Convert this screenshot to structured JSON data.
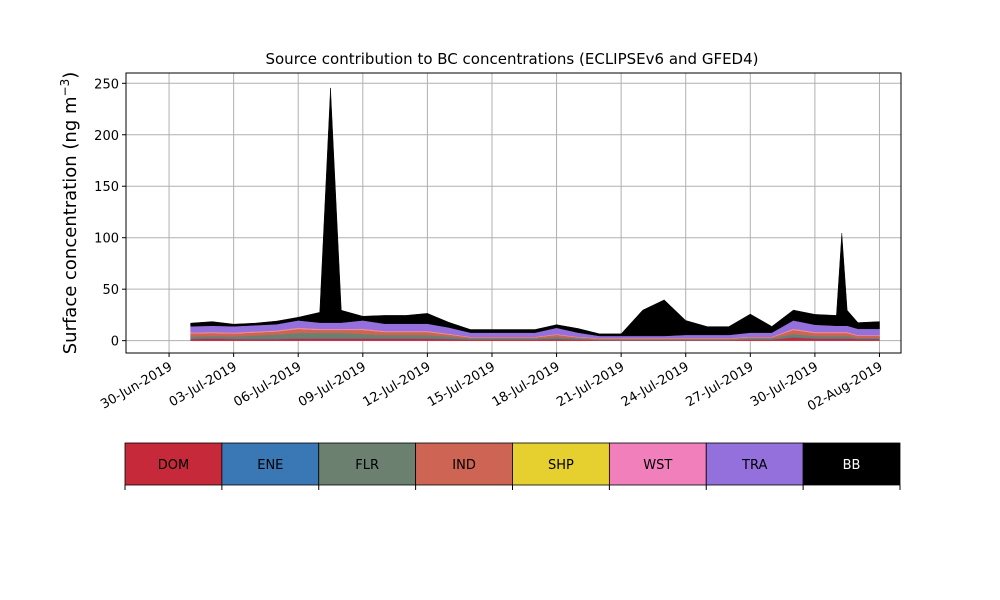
{
  "chart_data": {
    "type": "area",
    "title": "Source contribution to BC concentrations (ECLIPSEv6 and GFED4)",
    "ylabel_main": "Surface concentration (ng m",
    "ylabel_sup": "−3",
    "ylabel_close": ")",
    "xlabel": "",
    "ylim": [
      -12,
      260
    ],
    "xlim": [
      "2019-06-28",
      "2019-08-03"
    ],
    "yticks": [
      0,
      50,
      100,
      150,
      200,
      250
    ],
    "xticks": [
      {
        "date": "2019-06-30",
        "label": "30-Jun-2019"
      },
      {
        "date": "2019-07-03",
        "label": "03-Jul-2019"
      },
      {
        "date": "2019-07-06",
        "label": "06-Jul-2019"
      },
      {
        "date": "2019-07-09",
        "label": "09-Jul-2019"
      },
      {
        "date": "2019-07-12",
        "label": "12-Jul-2019"
      },
      {
        "date": "2019-07-15",
        "label": "15-Jul-2019"
      },
      {
        "date": "2019-07-18",
        "label": "18-Jul-2019"
      },
      {
        "date": "2019-07-21",
        "label": "21-Jul-2019"
      },
      {
        "date": "2019-07-24",
        "label": "24-Jul-2019"
      },
      {
        "date": "2019-07-27",
        "label": "27-Jul-2019"
      },
      {
        "date": "2019-07-30",
        "label": "30-Jul-2019"
      },
      {
        "date": "2019-08-02",
        "label": "02-Aug-2019"
      }
    ],
    "grid": true,
    "stacked": true,
    "dates": [
      "2019-07-01",
      "2019-07-02",
      "2019-07-03",
      "2019-07-04",
      "2019-07-05",
      "2019-07-06",
      "2019-07-07",
      "2019-07-07 12:00",
      "2019-07-08",
      "2019-07-09",
      "2019-07-10",
      "2019-07-11",
      "2019-07-12",
      "2019-07-13",
      "2019-07-14",
      "2019-07-15",
      "2019-07-16",
      "2019-07-17",
      "2019-07-18",
      "2019-07-19",
      "2019-07-20",
      "2019-07-21",
      "2019-07-22",
      "2019-07-23",
      "2019-07-24",
      "2019-07-25",
      "2019-07-26",
      "2019-07-27",
      "2019-07-28",
      "2019-07-29",
      "2019-07-30",
      "2019-07-31",
      "2019-07-31 06:00",
      "2019-07-31 12:00",
      "2019-08-01",
      "2019-08-02"
    ],
    "series": [
      {
        "name": "DOM",
        "color": "#c62a3a",
        "values": [
          1.5,
          2,
          1.5,
          1.5,
          1.5,
          2,
          2,
          2,
          2,
          2,
          2,
          2,
          2,
          1.5,
          1,
          1,
          1,
          1,
          1.5,
          1,
          0.5,
          0.5,
          0.5,
          0.5,
          0.5,
          0.5,
          0.5,
          1,
          1,
          3,
          2,
          2,
          2,
          2,
          1.5,
          1.5
        ]
      },
      {
        "name": "ENE",
        "color": "#3a78b5",
        "values": [
          0.5,
          0.5,
          0.5,
          0.5,
          0.5,
          0.5,
          0.5,
          0.5,
          0.5,
          0.5,
          0.5,
          0.5,
          0.5,
          0.5,
          0.3,
          0.3,
          0.3,
          0.3,
          0.3,
          0.3,
          0.2,
          0.2,
          0.2,
          0.2,
          0.2,
          0.2,
          0.2,
          0.3,
          0.3,
          0.5,
          0.5,
          0.5,
          0.5,
          0.5,
          0.3,
          0.3
        ]
      },
      {
        "name": "FLR",
        "color": "#6c8070",
        "values": [
          2,
          2,
          2,
          3,
          4,
          5,
          5,
          5,
          5,
          4,
          3,
          3,
          3,
          2,
          1,
          1,
          1,
          1,
          2,
          1,
          0.5,
          0.5,
          0.5,
          0.5,
          0.5,
          0.5,
          0.5,
          1,
          1,
          3,
          2,
          2,
          2,
          2,
          1,
          1
        ]
      },
      {
        "name": "IND",
        "color": "#cd6454",
        "values": [
          3,
          3,
          3,
          3,
          3,
          4,
          3,
          3,
          3,
          4,
          3,
          3,
          3,
          2,
          1,
          1,
          1,
          1,
          2,
          1,
          1,
          1,
          1,
          1,
          1,
          1,
          1,
          1,
          1,
          4,
          3,
          3,
          3,
          3,
          2,
          2
        ]
      },
      {
        "name": "SHP",
        "color": "#e6d030",
        "values": [
          0.2,
          0.2,
          0.2,
          0.2,
          0.2,
          0.2,
          0.2,
          0.2,
          0.2,
          0.2,
          0.2,
          0.2,
          0.2,
          0.2,
          0.1,
          0.1,
          0.1,
          0.1,
          0.1,
          0.1,
          0.1,
          0.1,
          0.1,
          0.1,
          0.1,
          0.1,
          0.1,
          0.1,
          0.1,
          0.2,
          0.2,
          0.2,
          0.2,
          0.2,
          0.1,
          0.1
        ]
      },
      {
        "name": "WST",
        "color": "#f07fbc",
        "values": [
          0.8,
          0.8,
          0.8,
          0.8,
          0.8,
          1,
          0.8,
          0.8,
          0.8,
          1,
          0.8,
          0.8,
          0.8,
          0.6,
          0.4,
          0.4,
          0.4,
          0.4,
          0.6,
          0.4,
          0.3,
          0.3,
          0.3,
          0.3,
          0.3,
          0.3,
          0.3,
          0.4,
          0.4,
          1,
          0.8,
          0.8,
          0.8,
          0.8,
          0.6,
          0.6
        ]
      },
      {
        "name": "TRA",
        "color": "#9370db",
        "values": [
          6,
          6,
          6,
          6,
          6,
          7,
          6,
          6,
          6,
          8,
          7,
          7,
          7,
          6,
          4,
          4,
          4,
          4,
          6,
          4,
          2,
          2,
          2,
          2,
          3,
          3,
          3,
          4,
          4,
          8,
          7,
          6,
          6,
          6,
          6,
          6
        ]
      },
      {
        "name": "BB",
        "color": "#000000",
        "values": [
          3,
          4,
          2,
          2,
          3,
          3,
          10,
          228,
          12,
          4,
          8,
          8,
          10,
          5,
          3,
          3,
          3,
          3,
          3,
          4,
          2,
          2,
          25,
          35,
          14,
          8,
          8,
          18,
          6,
          10,
          10,
          10,
          90,
          15,
          6,
          7
        ]
      }
    ],
    "legend": {
      "placement": "below",
      "items": [
        {
          "label": "DOM",
          "color": "#c62a3a",
          "text_color": "#000000"
        },
        {
          "label": "ENE",
          "color": "#3a78b5",
          "text_color": "#000000"
        },
        {
          "label": "FLR",
          "color": "#6c8070",
          "text_color": "#000000"
        },
        {
          "label": "IND",
          "color": "#cd6454",
          "text_color": "#000000"
        },
        {
          "label": "SHP",
          "color": "#e6d030",
          "text_color": "#000000"
        },
        {
          "label": "WST",
          "color": "#f07fbc",
          "text_color": "#000000"
        },
        {
          "label": "TRA",
          "color": "#9370db",
          "text_color": "#000000"
        },
        {
          "label": "BB",
          "color": "#000000",
          "text_color": "#ffffff"
        }
      ]
    }
  }
}
